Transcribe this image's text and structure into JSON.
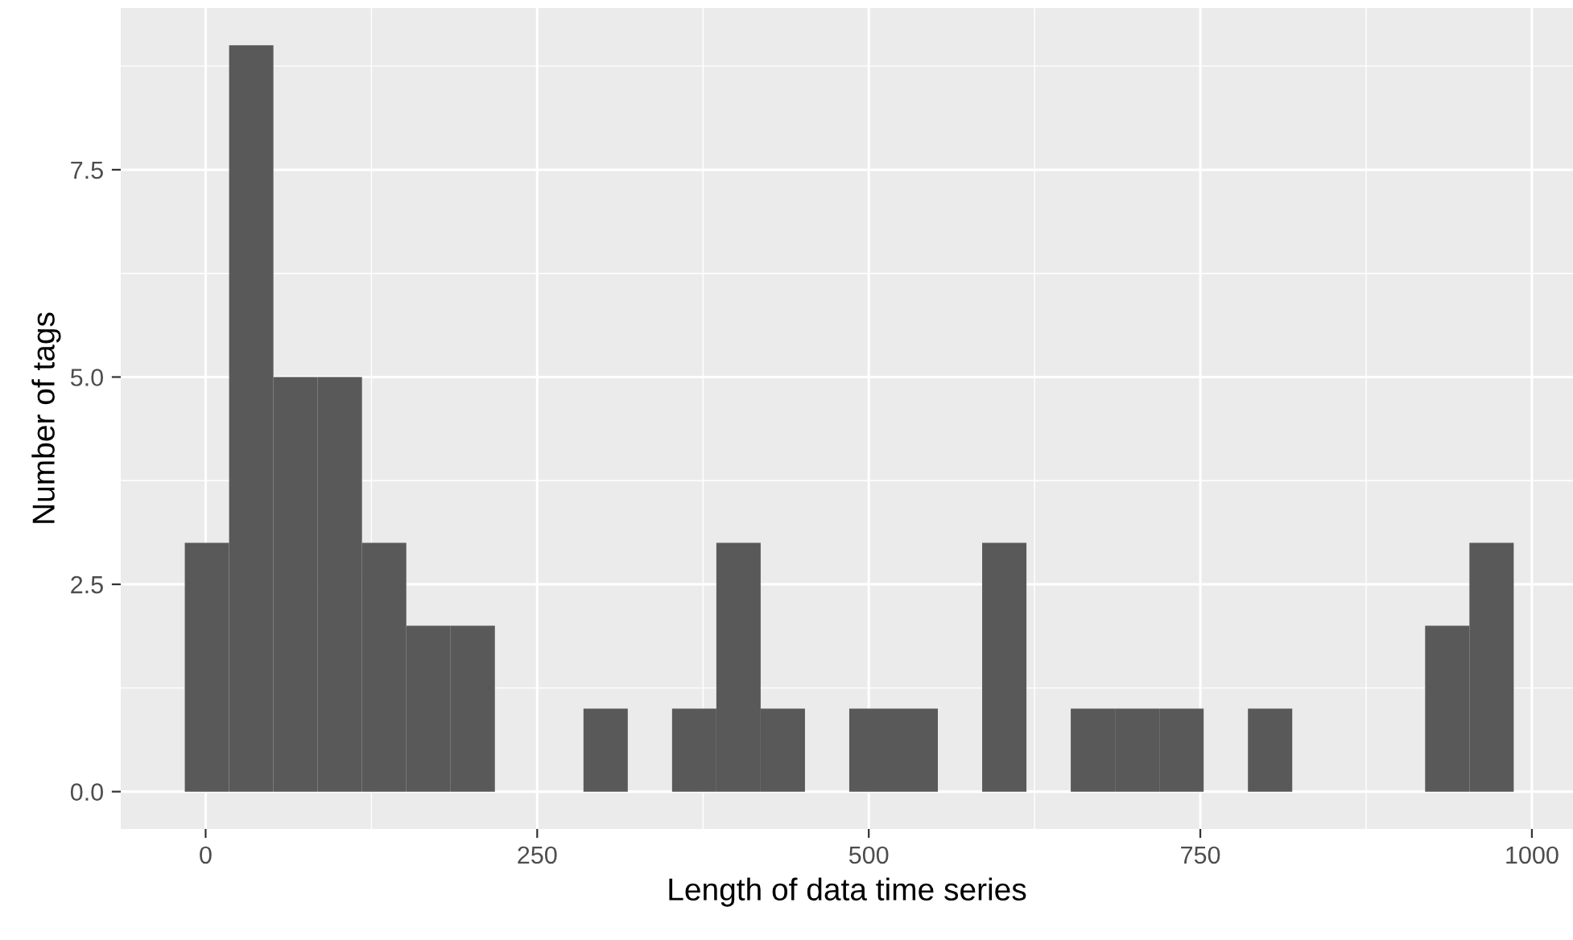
{
  "chart_data": {
    "type": "histogram",
    "xlabel": "Length of data time series",
    "ylabel": "Number of tags",
    "bins": [
      -15.7,
      17.7,
      51.1,
      84.5,
      117.9,
      151.3,
      184.7,
      218.1,
      251.5,
      284.9,
      318.3,
      351.7,
      385.1,
      418.5,
      451.9,
      485.3,
      518.7,
      552.1,
      585.5,
      618.9,
      652.3,
      685.7,
      719.1,
      752.5,
      785.9,
      819.3,
      852.7,
      886.1,
      919.5,
      952.9,
      986.3
    ],
    "values": [
      3,
      9,
      5,
      5,
      3,
      2,
      2,
      0,
      0,
      1,
      0,
      1,
      3,
      1,
      0,
      1,
      1,
      0,
      3,
      0,
      1,
      1,
      1,
      0,
      1,
      0,
      0,
      0,
      2,
      3
    ],
    "color": "#595959",
    "xlim": [
      -64,
      1031
    ],
    "ylim": [
      -0.45,
      9.45
    ],
    "xticks": [
      0,
      250,
      500,
      750,
      1000
    ],
    "yticks": [
      {
        "value": 0,
        "label": "0.0"
      },
      {
        "value": 2.5,
        "label": "2.5"
      },
      {
        "value": 5,
        "label": "5.0"
      },
      {
        "value": 7.5,
        "label": "7.5"
      }
    ],
    "grid": true
  }
}
